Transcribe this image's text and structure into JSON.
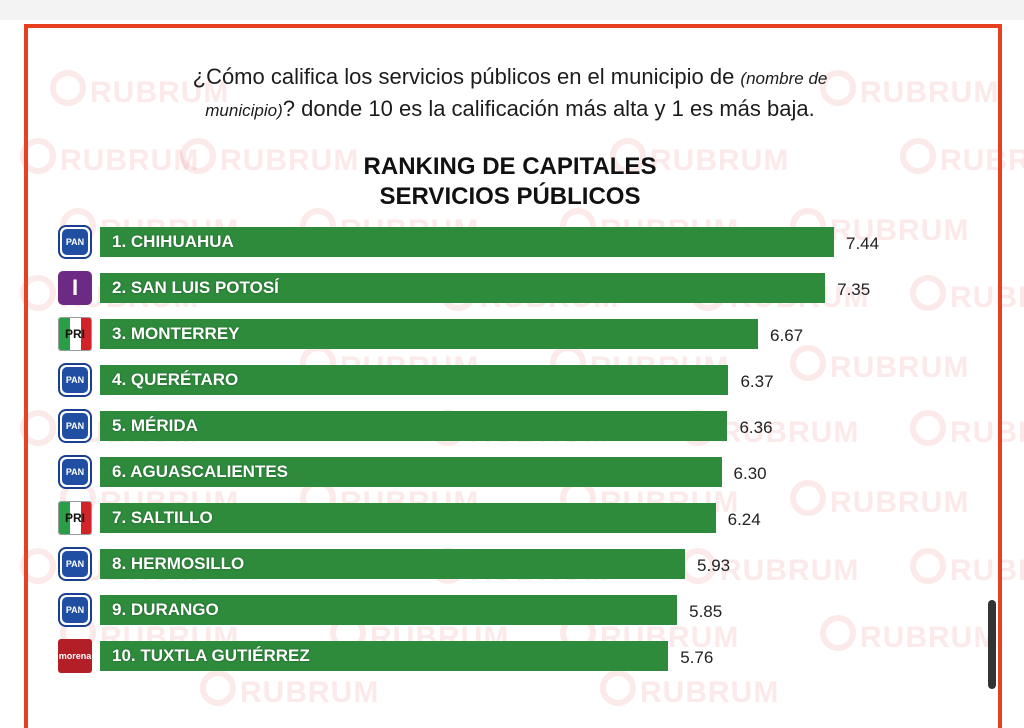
{
  "question": {
    "part1": "¿Cómo califica los servicios públicos en el municipio de ",
    "italic1": "(nombre de",
    "italic2": "municipio)",
    "part2": "? donde 10 es la calificación más alta y 1 es más baja."
  },
  "title": {
    "line1": "RANKING DE CAPITALES",
    "line2": "SERVICIOS PÚBLICOS"
  },
  "watermark": {
    "text": "RUBRUM"
  },
  "colors": {
    "frame": "#e8401f",
    "bar": "#2e8b3c",
    "pan": "#1f4ea3",
    "independiente": "#6d2a84",
    "morena": "#b21f26"
  },
  "party_logos": {
    "PAN": "PAN",
    "IND": "I",
    "PRI": "PRI",
    "MORENA": "morena"
  },
  "chart_data": {
    "type": "bar",
    "orientation": "horizontal",
    "title": "RANKING DE CAPITALES SERVICIOS PÚBLICOS",
    "categories": [
      "1. CHIHUAHUA",
      "2. SAN LUIS POTOSÍ",
      "3. MONTERREY",
      "4. QUERÉTARO",
      "5. MÉRIDA",
      "6. AGUASCALIENTES",
      "7. SALTILLO",
      "8. HERMOSILLO",
      "9. DURANGO",
      "10. TUXTLA GUTIÉRREZ"
    ],
    "values": [
      7.44,
      7.35,
      6.67,
      6.37,
      6.36,
      6.3,
      6.24,
      5.93,
      5.85,
      5.76
    ],
    "value_labels": [
      "7.44",
      "7.35",
      "6.67",
      "6.37",
      "6.36",
      "6.30",
      "6.24",
      "5.93",
      "5.85",
      "5.76"
    ],
    "parties": [
      "PAN",
      "IND",
      "PRI",
      "PAN",
      "PAN",
      "PAN",
      "PRI",
      "PAN",
      "PAN",
      "MORENA"
    ],
    "xlim": [
      0,
      10
    ]
  }
}
